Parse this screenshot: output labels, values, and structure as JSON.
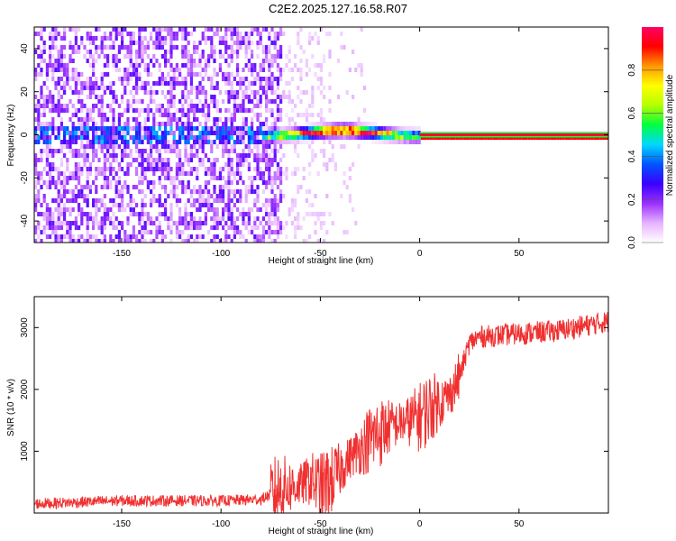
{
  "title": "C2E2.2025.127.16.58.R07",
  "chart_data": [
    {
      "type": "heatmap",
      "xlabel": "Height of straight line (km)",
      "ylabel": "Frequency (Hz)",
      "xlim": [
        -194,
        95
      ],
      "ylim": [
        -50,
        50
      ],
      "xticks": [
        -150,
        -100,
        -50,
        0,
        50
      ],
      "yticks": [
        -40,
        -20,
        0,
        20,
        40
      ],
      "colorbar": {
        "label": "Normalized spectral amplitude",
        "range": [
          0,
          1
        ],
        "ticks": [
          0.0,
          0.2,
          0.4,
          0.6,
          0.8
        ],
        "colormap": [
          "#ffffff",
          "#e6b3ff",
          "#9b30ff",
          "#3a00ff",
          "#0055ff",
          "#00d8ff",
          "#00ff40",
          "#b4ff00",
          "#ffff00",
          "#ff9900",
          "#ff0000",
          "#ff0066"
        ]
      },
      "features": {
        "noise_region_x": [
          -194,
          -70
        ],
        "noise_density": 0.55,
        "ridge_start_x": -80,
        "ridge_peak_x": -40,
        "ridge_freq_offset_hz": 3,
        "steady_line_x": [
          0,
          95
        ],
        "steady_line_freq_hz": 0,
        "steady_line_amplitude": 0.95
      }
    },
    {
      "type": "line",
      "color": "#f03030",
      "xlabel": "Height of straight line (km)",
      "ylabel": "SNR (10 * v/v)",
      "xlim": [
        -194,
        95
      ],
      "ylim": [
        0,
        3500
      ],
      "xticks": [
        -150,
        -100,
        -50,
        0,
        50
      ],
      "yticks": [
        1000,
        2000,
        3000
      ],
      "x": [
        -194,
        -150,
        -100,
        -80,
        -75,
        -70,
        -60,
        -55,
        -50,
        -45,
        -40,
        -35,
        -30,
        -25,
        -20,
        -15,
        -10,
        -5,
        0,
        5,
        10,
        15,
        20,
        25,
        30,
        50,
        70,
        95
      ],
      "y": [
        150,
        200,
        200,
        220,
        300,
        400,
        450,
        550,
        400,
        500,
        700,
        900,
        1050,
        1200,
        1300,
        1400,
        1450,
        1500,
        1550,
        1700,
        1800,
        1900,
        2200,
        2750,
        2850,
        2900,
        2950,
        3100
      ]
    }
  ]
}
